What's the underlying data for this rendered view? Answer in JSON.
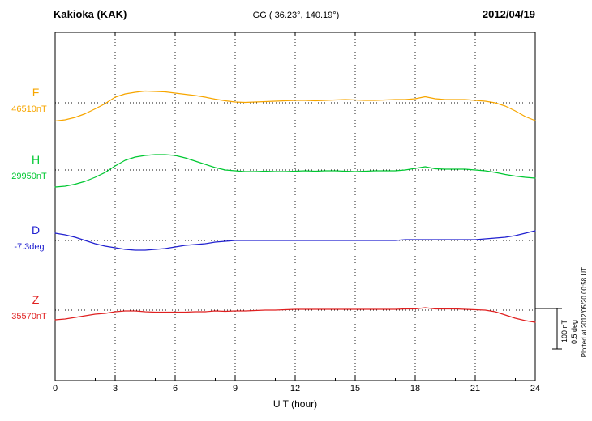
{
  "header": {
    "station": "Kakioka (KAK)",
    "coordinates": "GG ( 36.23°, 140.19°)",
    "date": "2012/04/19"
  },
  "axis": {
    "xlabel": "U T (hour)",
    "x_ticks": [
      0,
      3,
      6,
      9,
      12,
      15,
      18,
      21,
      24
    ]
  },
  "sidebar": {
    "plotted_at": "Plotted at 2012/05/20 00:58 UT",
    "scale_label_nt": "100 nT",
    "scale_label_deg": "0.5 deg"
  },
  "chart_data": {
    "type": "line",
    "title": "Kakioka (KAK) magnetogram, GG ( 36.23°, 140.19°), 2012/04/19",
    "xlabel": "U T (hour)",
    "xlim": [
      0,
      24
    ],
    "x_ticks": [
      0,
      3,
      6,
      9,
      12,
      15,
      18,
      21,
      24
    ],
    "x_step_hours": 0.5,
    "grid": "dotted vertical at every 3 hours, dotted horizontal baseline per trace",
    "legend_position": "left margin channel labels",
    "scale": {
      "nT_per_division": 100,
      "deg_per_division": 0.5
    },
    "series": [
      {
        "label": "F",
        "baseline_label": "46510nT",
        "baseline_value": 46510,
        "unit": "nT",
        "color": "#F7A600",
        "offsets_from_baseline": [
          -45,
          -42,
          -36,
          -27,
          -15,
          -2,
          14,
          22,
          26,
          29,
          28,
          27,
          24,
          21,
          18,
          14,
          9,
          5,
          2,
          1,
          2,
          3,
          4,
          5,
          6,
          6,
          5,
          6,
          7,
          8,
          7,
          6,
          6,
          7,
          8,
          8,
          10,
          15,
          10,
          8,
          8,
          8,
          6,
          4,
          0,
          -8,
          -20,
          -34,
          -44
        ]
      },
      {
        "label": "H",
        "baseline_label": "29950nT",
        "baseline_value": 29950,
        "unit": "nT",
        "color": "#00C832",
        "offsets_from_baseline": [
          -42,
          -40,
          -35,
          -28,
          -18,
          -6,
          10,
          24,
          32,
          36,
          38,
          38,
          36,
          30,
          22,
          14,
          6,
          0,
          -2,
          -4,
          -4,
          -3,
          -4,
          -4,
          -3,
          -2,
          -3,
          -2,
          -2,
          -3,
          -4,
          -3,
          -2,
          -2,
          -2,
          0,
          4,
          8,
          3,
          2,
          2,
          2,
          0,
          -2,
          -6,
          -11,
          -15,
          -18,
          -20
        ]
      },
      {
        "label": "D",
        "baseline_label": "-7.3deg",
        "baseline_value": -7.3,
        "unit": "deg",
        "color": "#2020D0",
        "offsets_from_baseline": [
          0.09,
          0.07,
          0.04,
          0.0,
          -0.04,
          -0.07,
          -0.09,
          -0.11,
          -0.12,
          -0.12,
          -0.11,
          -0.1,
          -0.08,
          -0.06,
          -0.05,
          -0.04,
          -0.02,
          -0.01,
          0.0,
          0.0,
          0.0,
          0.0,
          0.0,
          0.0,
          0.0,
          0.0,
          0.0,
          0.0,
          0.0,
          0.0,
          0.0,
          0.0,
          0.0,
          0.0,
          0.0,
          0.01,
          0.01,
          0.01,
          0.01,
          0.01,
          0.01,
          0.01,
          0.01,
          0.02,
          0.03,
          0.04,
          0.06,
          0.09,
          0.12
        ]
      },
      {
        "label": "Z",
        "baseline_label": "35570nT",
        "baseline_value": 35570,
        "unit": "nT",
        "color": "#E02020",
        "offsets_from_baseline": [
          -24,
          -22,
          -18,
          -14,
          -10,
          -8,
          -4,
          -2,
          -2,
          -4,
          -5,
          -5,
          -5,
          -5,
          -4,
          -4,
          -2,
          -3,
          -2,
          -2,
          -1,
          0,
          0,
          1,
          2,
          2,
          2,
          2,
          2,
          2,
          2,
          2,
          2,
          2,
          2,
          3,
          3,
          6,
          3,
          3,
          3,
          2,
          1,
          0,
          -4,
          -12,
          -20,
          -26,
          -30
        ]
      }
    ]
  }
}
